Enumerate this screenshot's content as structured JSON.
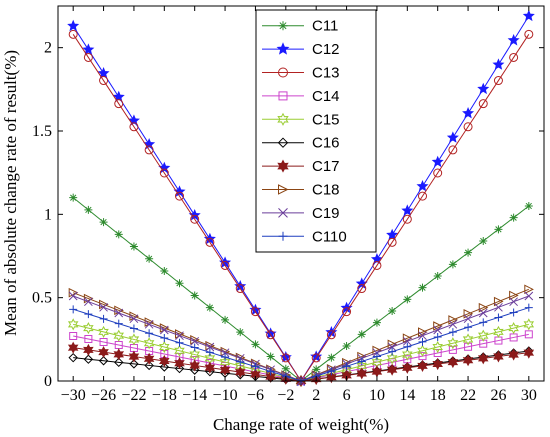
{
  "chart_data": {
    "type": "line",
    "xlabel": "Change rate of weight(%)",
    "ylabel": "Mean of absolute change rate of result(%)",
    "xlim": [
      -32,
      32
    ],
    "ylim": [
      0,
      2.25
    ],
    "xticks": [
      -30,
      -26,
      -22,
      -18,
      -14,
      -10,
      -6,
      -2,
      2,
      6,
      10,
      14,
      18,
      22,
      26,
      30
    ],
    "xtick_labels": [
      "−30",
      "−26",
      "−22",
      "−18",
      "−14",
      "−10",
      "−6",
      "−2",
      "2",
      "6",
      "10",
      "14",
      "18",
      "22",
      "26",
      "30"
    ],
    "yticks": [
      0,
      0.5,
      1,
      1.5,
      2
    ],
    "ytick_labels": [
      "0",
      "0.5",
      "1",
      "1.5",
      "2"
    ],
    "legend_position": "top-center",
    "x": [
      -30,
      -28,
      -26,
      -24,
      -22,
      -20,
      -18,
      -16,
      -14,
      -12,
      -10,
      -8,
      -6,
      -4,
      -2,
      0,
      2,
      4,
      6,
      8,
      10,
      12,
      14,
      16,
      18,
      20,
      22,
      24,
      26,
      28,
      30
    ],
    "series": [
      {
        "name": "C11",
        "color": "#2e8b2e",
        "marker": "asterisk",
        "left": 1.1,
        "right": 1.05
      },
      {
        "name": "C12",
        "color": "#1a1aff",
        "marker": "star",
        "left": 2.13,
        "right": 2.19
      },
      {
        "name": "C13",
        "color": "#b22222",
        "marker": "circle",
        "left": 2.08,
        "right": 2.08
      },
      {
        "name": "C14",
        "color": "#cc44cc",
        "marker": "square",
        "left": 0.27,
        "right": 0.28
      },
      {
        "name": "C15",
        "color": "#9acd32",
        "marker": "hexagram",
        "left": 0.34,
        "right": 0.34
      },
      {
        "name": "C16",
        "color": "#000000",
        "marker": "diamond",
        "left": 0.14,
        "right": 0.18
      },
      {
        "name": "C17",
        "color": "#8b1a1a",
        "marker": "hexagram-filled",
        "left": 0.2,
        "right": 0.17
      },
      {
        "name": "C18",
        "color": "#8b4513",
        "marker": "triangle-right",
        "left": 0.53,
        "right": 0.55
      },
      {
        "name": "C19",
        "color": "#6a3d9a",
        "marker": "x",
        "left": 0.51,
        "right": 0.51
      },
      {
        "name": "C110",
        "color": "#1f3fbf",
        "marker": "plus",
        "left": 0.43,
        "right": 0.44
      }
    ]
  }
}
